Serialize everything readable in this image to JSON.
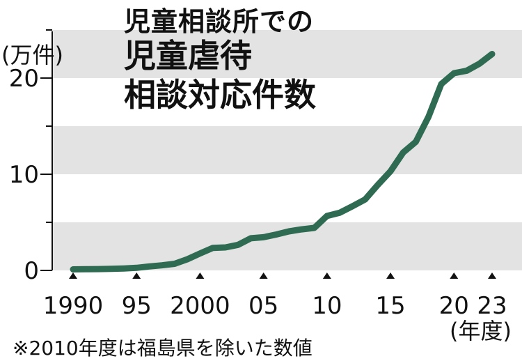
{
  "chart_data": {
    "type": "line",
    "title_lines": [
      "児童相談所での",
      "児童虐待",
      "相談対応件数"
    ],
    "ylabel": "(万件)",
    "xlabel": "(年度)",
    "note": "※2010年度は福島県を除いた数値",
    "ylim": [
      0,
      25
    ],
    "xlim": [
      1990,
      2023
    ],
    "yticks_major": [
      0,
      10,
      20
    ],
    "ytick_labels": [
      "0",
      "10",
      "20"
    ],
    "xticks": [
      1990,
      1995,
      2000,
      2005,
      2010,
      2015,
      2020,
      2023
    ],
    "xtick_labels": [
      "1990",
      "95",
      "2000",
      "05",
      "10",
      "15",
      "20",
      "23"
    ],
    "bands": [
      [
        0,
        5
      ],
      [
        10,
        15
      ],
      [
        20,
        25
      ]
    ],
    "line_color": "#2e6b52",
    "band_color": "#e3e3e3",
    "x": [
      1990,
      1991,
      1992,
      1993,
      1994,
      1995,
      1996,
      1997,
      1998,
      1999,
      2000,
      2001,
      2002,
      2003,
      2004,
      2005,
      2006,
      2007,
      2008,
      2009,
      2010,
      2011,
      2012,
      2013,
      2014,
      2015,
      2016,
      2017,
      2018,
      2019,
      2020,
      2021,
      2022,
      2023
    ],
    "values": [
      0.11,
      0.12,
      0.14,
      0.16,
      0.2,
      0.27,
      0.41,
      0.53,
      0.69,
      1.16,
      1.76,
      2.33,
      2.39,
      2.66,
      3.34,
      3.45,
      3.73,
      4.06,
      4.27,
      4.42,
      5.66,
      5.99,
      6.67,
      7.38,
      8.89,
      10.31,
      12.26,
      13.38,
      15.99,
      19.38,
      20.51,
      20.76,
      21.49,
      22.5
    ]
  }
}
